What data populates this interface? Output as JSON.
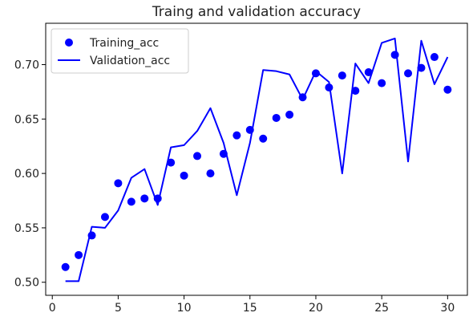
{
  "chart_data": {
    "type": "line",
    "title": "Traing and validation accuracy",
    "xlabel": "",
    "ylabel": "",
    "xlim": [
      -0.5,
      31.5
    ],
    "ylim": [
      0.488,
      0.738
    ],
    "x_ticks": [
      0,
      5,
      10,
      15,
      20,
      25,
      30
    ],
    "y_ticks": [
      0.5,
      0.55,
      0.6,
      0.65,
      0.7
    ],
    "y_tick_labels": [
      "0.50",
      "0.55",
      "0.60",
      "0.65",
      "0.70"
    ],
    "grid": false,
    "legend_position": "upper-left",
    "x": [
      1,
      2,
      3,
      4,
      5,
      6,
      7,
      8,
      9,
      10,
      11,
      12,
      13,
      14,
      15,
      16,
      17,
      18,
      19,
      20,
      21,
      22,
      23,
      24,
      25,
      26,
      27,
      28,
      29,
      30
    ],
    "series": [
      {
        "name": "Training_acc",
        "style": "markers",
        "color": "#0000ff",
        "values": [
          0.514,
          0.525,
          0.543,
          0.56,
          0.591,
          0.574,
          0.577,
          0.577,
          0.61,
          0.598,
          0.616,
          0.6,
          0.618,
          0.635,
          0.64,
          0.632,
          0.651,
          0.654,
          0.67,
          0.692,
          0.679,
          0.69,
          0.676,
          0.693,
          0.683,
          0.709,
          0.692,
          0.697,
          0.707,
          0.677
        ]
      },
      {
        "name": "Validation_acc",
        "style": "line",
        "color": "#0000ff",
        "values": [
          0.501,
          0.501,
          0.551,
          0.55,
          0.566,
          0.596,
          0.604,
          0.571,
          0.624,
          0.626,
          0.639,
          0.66,
          0.628,
          0.58,
          0.628,
          0.695,
          0.694,
          0.691,
          0.668,
          0.694,
          0.684,
          0.6,
          0.701,
          0.683,
          0.72,
          0.724,
          0.611,
          0.722,
          0.682,
          0.707
        ]
      }
    ]
  }
}
